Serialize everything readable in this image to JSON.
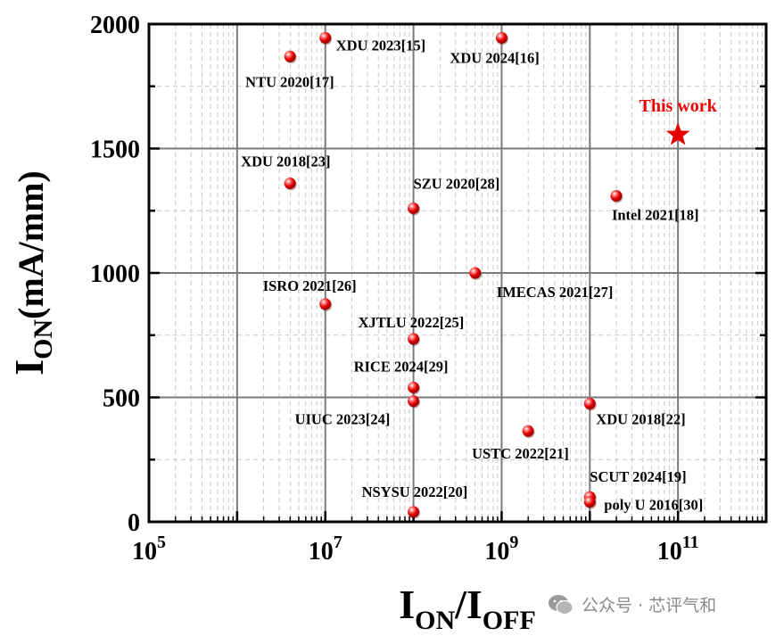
{
  "chart_data": {
    "type": "scatter",
    "title": "",
    "xlabel": {
      "main": "I",
      "sub1": "ON",
      "slash": "/I",
      "sub2": "OFF"
    },
    "ylabel": {
      "main": "I",
      "sub": "ON",
      "rest": "(mA/mm)"
    },
    "x_scale": "log",
    "xlim_exp": [
      5,
      12
    ],
    "ylim": [
      0,
      2000
    ],
    "x_ticks": [
      {
        "base": "10",
        "exp": "5",
        "value": 5
      },
      {
        "base": "10",
        "exp": "7",
        "value": 7
      },
      {
        "base": "10",
        "exp": "9",
        "value": 9
      },
      {
        "base": "10",
        "exp": "11",
        "value": 11
      }
    ],
    "y_ticks": [
      "0",
      "500",
      "1000",
      "1500",
      "2000"
    ],
    "grid": true,
    "marker_color": "#e60000",
    "points": [
      {
        "label": "XDU 2023[15]",
        "x_exp": 7.0,
        "y": 1945
      },
      {
        "label": "XDU 2024[16]",
        "x_exp": 9.0,
        "y": 1945
      },
      {
        "label": "NTU 2020[17]",
        "x_exp": 6.6,
        "y": 1870
      },
      {
        "label": "XDU 2018[23]",
        "x_exp": 6.6,
        "y": 1360
      },
      {
        "label": "SZU 2020[28]",
        "x_exp": 8.0,
        "y": 1260
      },
      {
        "label": "Intel 2021[18]",
        "x_exp": 10.3,
        "y": 1310
      },
      {
        "label": "IMECAS 2021[27]",
        "x_exp": 8.7,
        "y": 1000
      },
      {
        "label": "ISRO 2021[26]",
        "x_exp": 7.0,
        "y": 875
      },
      {
        "label": "XJTLU 2022[25]",
        "x_exp": 8.0,
        "y": 735
      },
      {
        "label": "RICE 2024[29]",
        "x_exp": 8.0,
        "y": 540
      },
      {
        "label": "UIUC 2023[24]",
        "x_exp": 8.0,
        "y": 485
      },
      {
        "label": "XDU 2018[22]",
        "x_exp": 10.0,
        "y": 475
      },
      {
        "label": "USTC 2022[21]",
        "x_exp": 9.3,
        "y": 365
      },
      {
        "label": "SCUT 2024[19]",
        "x_exp": 10.0,
        "y": 100
      },
      {
        "label": "poly U 2016[30]",
        "x_exp": 10.0,
        "y": 80
      },
      {
        "label": "NSYSU 2022[20]",
        "x_exp": 8.0,
        "y": 40
      }
    ],
    "highlight": {
      "label": "This work",
      "x_exp": 11.0,
      "y": 1555,
      "marker": "star"
    }
  },
  "watermark": {
    "text": "公众号 · 芯评气和"
  }
}
